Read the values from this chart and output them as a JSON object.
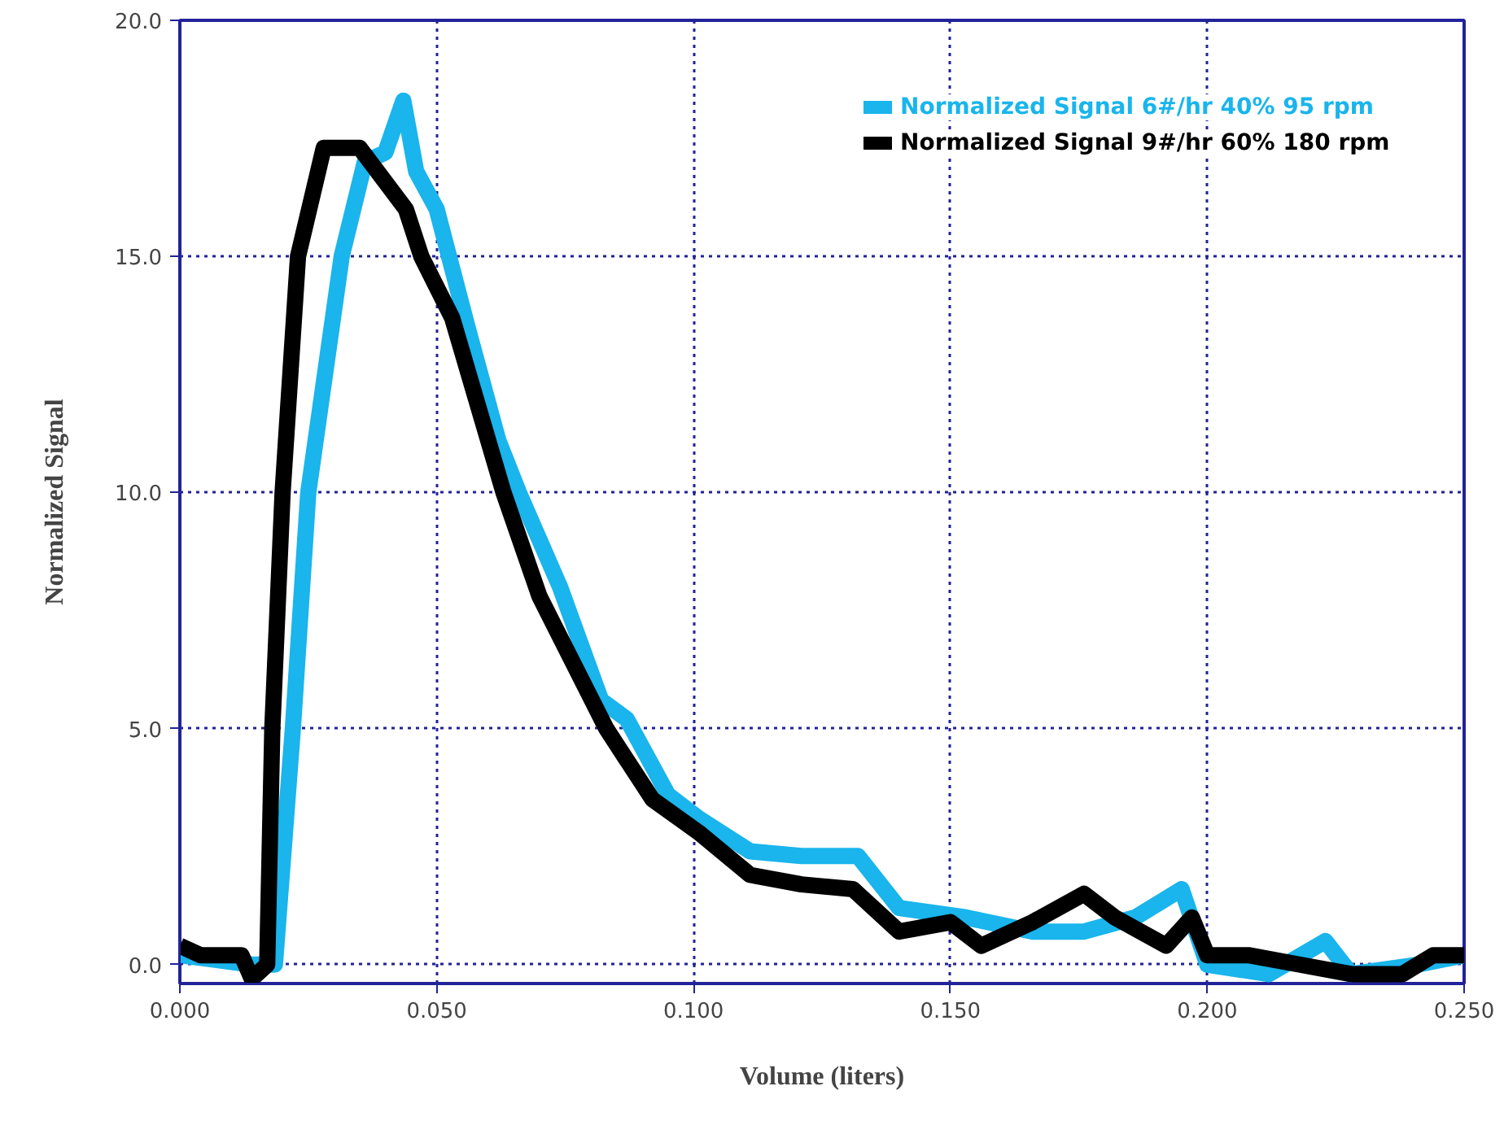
{
  "chart_data": {
    "type": "line",
    "xlabel": "Volume (liters)",
    "ylabel": "Normalized Signal",
    "xlim": [
      0,
      0.25
    ],
    "ylim": [
      -0.4,
      20
    ],
    "xticks": [
      {
        "value": 0,
        "label": "0.000"
      },
      {
        "value": 0.05,
        "label": "0.050"
      },
      {
        "value": 0.1,
        "label": "0.100"
      },
      {
        "value": 0.15,
        "label": "0.150"
      },
      {
        "value": 0.2,
        "label": "0.200"
      },
      {
        "value": 0.25,
        "label": "0.250"
      }
    ],
    "yticks": [
      {
        "value": 0,
        "label": "0.0"
      },
      {
        "value": 5,
        "label": "5.0"
      },
      {
        "value": 10,
        "label": "10.0"
      },
      {
        "value": 15,
        "label": "15.0"
      },
      {
        "value": 20,
        "label": "20.0"
      }
    ],
    "grid": true,
    "legend": "top right",
    "line_style": "solid",
    "series": [
      {
        "name": "Normalized Signal 6#/hr 40% 95 rpm",
        "color": "#19b5ec",
        "x": [
          0,
          0.014,
          0.0185,
          0.022,
          0.025,
          0.0315,
          0.036,
          0.04,
          0.0435,
          0.046,
          0.05,
          0.056,
          0.062,
          0.066,
          0.074,
          0.082,
          0.087,
          0.095,
          0.101,
          0.111,
          0.121,
          0.132,
          0.14,
          0.153,
          0.166,
          0.176,
          0.186,
          0.195,
          0.2,
          0.212,
          0.223,
          0.228,
          0.241,
          0.25
        ],
        "values": [
          0.2,
          0,
          0,
          5,
          10,
          15,
          17.0,
          17.2,
          18.3,
          16.8,
          16.0,
          13.5,
          11.1,
          10,
          8.0,
          5.6,
          5.2,
          3.6,
          3.1,
          2.4,
          2.3,
          2.3,
          1.2,
          1.0,
          0.7,
          0.7,
          1.0,
          1.6,
          0,
          -0.2,
          0.5,
          -0.2,
          0,
          0.2
        ]
      },
      {
        "name": "Normalized Signal 9#/hr 60% 180 rpm",
        "color": "#000000",
        "x": [
          0,
          0.004,
          0.012,
          0.014,
          0.017,
          0.018,
          0.02,
          0.023,
          0.028,
          0.035,
          0.044,
          0.047,
          0.053,
          0.063,
          0.07,
          0.083,
          0.092,
          0.101,
          0.111,
          0.121,
          0.131,
          0.14,
          0.15,
          0.156,
          0.166,
          0.176,
          0.182,
          0.192,
          0.197,
          0.2,
          0.208,
          0.218,
          0.228,
          0.238,
          0.244,
          0.25
        ],
        "values": [
          0.4,
          0.2,
          0.2,
          -0.3,
          0,
          5,
          10,
          15,
          17.3,
          17.3,
          16.0,
          15,
          13.7,
          10,
          7.8,
          5,
          3.5,
          2.8,
          1.9,
          1.7,
          1.6,
          0.7,
          0.9,
          0.4,
          0.9,
          1.5,
          1.0,
          0.4,
          1.0,
          0.2,
          0.2,
          0,
          -0.2,
          -0.2,
          0.2,
          0.2
        ]
      }
    ]
  }
}
